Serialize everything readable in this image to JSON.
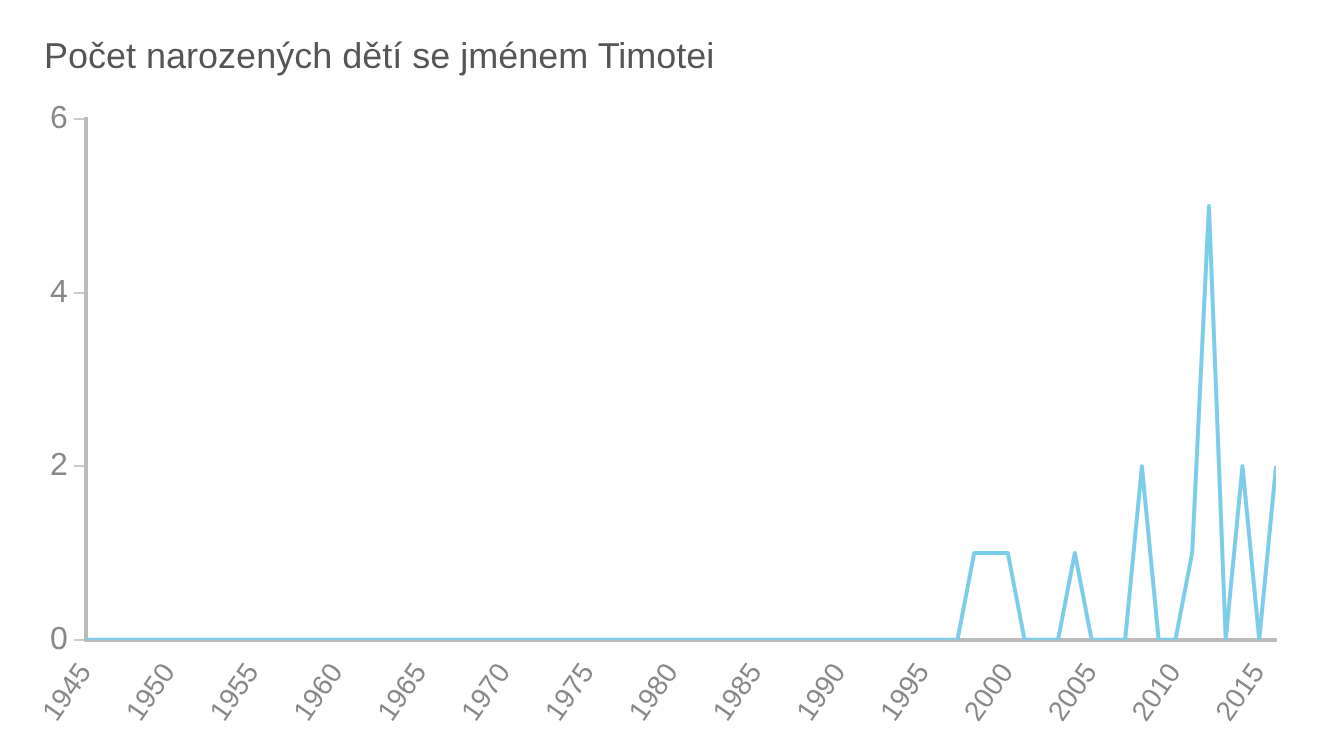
{
  "chart_data": {
    "type": "line",
    "title": "Počet narozených dětí se jménem Timotei",
    "x": [
      1945,
      1946,
      1947,
      1948,
      1949,
      1950,
      1951,
      1952,
      1953,
      1954,
      1955,
      1956,
      1957,
      1958,
      1959,
      1960,
      1961,
      1962,
      1963,
      1964,
      1965,
      1966,
      1967,
      1968,
      1969,
      1970,
      1971,
      1972,
      1973,
      1974,
      1975,
      1976,
      1977,
      1978,
      1979,
      1980,
      1981,
      1982,
      1983,
      1984,
      1985,
      1986,
      1987,
      1988,
      1989,
      1990,
      1991,
      1992,
      1993,
      1994,
      1995,
      1996,
      1997,
      1998,
      1999,
      2000,
      2001,
      2002,
      2003,
      2004,
      2005,
      2006,
      2007,
      2008,
      2009,
      2010,
      2011,
      2012,
      2013,
      2014,
      2015,
      2016
    ],
    "series": [
      {
        "color": "#7ccdea",
        "values": [
          0,
          0,
          0,
          0,
          0,
          0,
          0,
          0,
          0,
          0,
          0,
          0,
          0,
          0,
          0,
          0,
          0,
          0,
          0,
          0,
          0,
          0,
          0,
          0,
          0,
          0,
          0,
          0,
          0,
          0,
          0,
          0,
          0,
          0,
          0,
          0,
          0,
          0,
          0,
          0,
          0,
          0,
          0,
          0,
          0,
          0,
          0,
          0,
          0,
          0,
          0,
          0,
          0,
          1,
          1,
          1,
          0,
          0,
          0,
          1,
          0,
          0,
          0,
          2,
          0,
          0,
          1,
          5,
          0,
          2,
          0,
          2
        ]
      }
    ],
    "xlim": [
      1945,
      2016
    ],
    "xticks": [
      1945,
      1950,
      1955,
      1960,
      1965,
      1970,
      1975,
      1980,
      1985,
      1990,
      1995,
      2000,
      2005,
      2010,
      2015
    ],
    "ylim": [
      0,
      6
    ],
    "yticks": [
      0,
      2,
      4,
      6
    ],
    "grid": false,
    "legend": false,
    "marker": "none",
    "line_style": "solid"
  }
}
